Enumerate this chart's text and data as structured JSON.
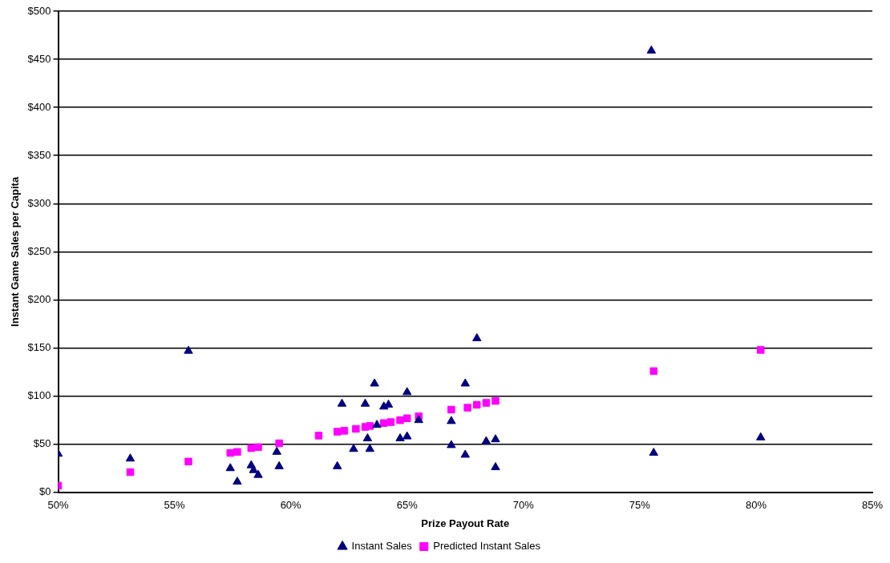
{
  "chart_data": {
    "type": "scatter",
    "xlabel": "Prize Payout Rate",
    "ylabel": "Instant Game Sales per Capita",
    "xlim": [
      50,
      85
    ],
    "ylim": [
      0,
      500
    ],
    "xticks": [
      {
        "value": 50,
        "label": "50%"
      },
      {
        "value": 55,
        "label": "55%"
      },
      {
        "value": 60,
        "label": "60%"
      },
      {
        "value": 65,
        "label": "65%"
      },
      {
        "value": 70,
        "label": "70%"
      },
      {
        "value": 75,
        "label": "75%"
      },
      {
        "value": 80,
        "label": "80%"
      },
      {
        "value": 85,
        "label": "85%"
      }
    ],
    "yticks": [
      {
        "value": 0,
        "label": "$0"
      },
      {
        "value": 50,
        "label": "$50"
      },
      {
        "value": 100,
        "label": "$100"
      },
      {
        "value": 150,
        "label": "$150"
      },
      {
        "value": 200,
        "label": "$200"
      },
      {
        "value": 250,
        "label": "$250"
      },
      {
        "value": 300,
        "label": "$300"
      },
      {
        "value": 350,
        "label": "$350"
      },
      {
        "value": 400,
        "label": "$400"
      },
      {
        "value": 450,
        "label": "$450"
      },
      {
        "value": 500,
        "label": "$500"
      }
    ],
    "grid": "y",
    "legend": "bottom",
    "series": [
      {
        "name": "Instant Sales",
        "color": "#000080",
        "marker": "triangle",
        "x": [
          50.0,
          53.1,
          55.6,
          57.4,
          57.7,
          58.3,
          58.4,
          58.6,
          59.4,
          59.5,
          62.0,
          62.2,
          62.7,
          63.2,
          63.3,
          63.4,
          63.6,
          63.7,
          64.0,
          64.2,
          64.7,
          65.0,
          65.0,
          65.5,
          66.9,
          66.9,
          67.5,
          67.5,
          68.0,
          68.4,
          68.8,
          68.8,
          75.5,
          75.6,
          80.2
        ],
        "values": [
          40,
          35,
          147,
          25,
          11,
          28,
          23,
          18,
          42,
          27,
          27,
          92,
          45,
          92,
          56,
          45,
          113,
          70,
          89,
          91,
          56,
          104,
          58,
          75,
          49,
          74,
          39,
          113,
          160,
          53,
          55,
          26,
          459,
          41,
          57
        ]
      },
      {
        "name": "Predicted Instant Sales",
        "color": "#ff00ff",
        "marker": "square",
        "x": [
          50.0,
          53.1,
          55.6,
          57.4,
          57.7,
          58.3,
          58.6,
          59.5,
          61.2,
          62.0,
          62.3,
          62.8,
          63.2,
          63.4,
          63.7,
          64.0,
          64.3,
          64.7,
          65.0,
          65.5,
          66.9,
          67.6,
          68.0,
          68.4,
          68.8,
          75.6,
          80.2
        ],
        "values": [
          7,
          21,
          32,
          41,
          42,
          46,
          47,
          51,
          59,
          63,
          64,
          66,
          68,
          69,
          null,
          72,
          73,
          75,
          77,
          79,
          86,
          88,
          91,
          93,
          95,
          126,
          148
        ]
      }
    ]
  }
}
